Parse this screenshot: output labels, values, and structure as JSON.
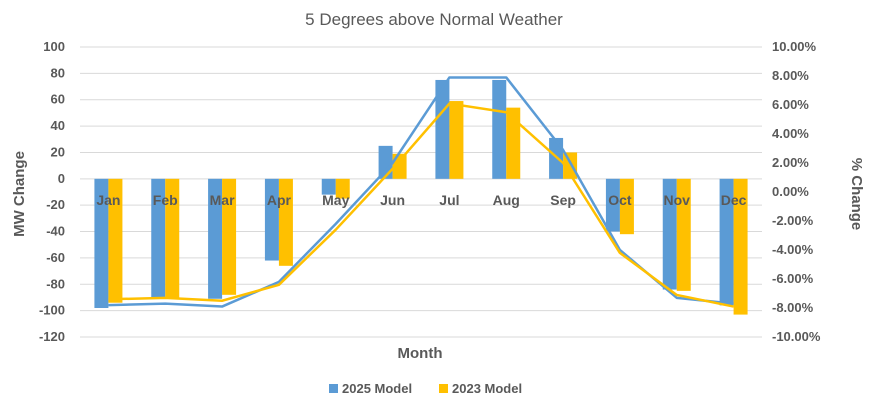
{
  "chart_data": {
    "type": "bar",
    "title": "5 Degrees above Normal Weather",
    "xlabel": "Month",
    "ylabel": "MW Change",
    "y2label": "% Change",
    "categories": [
      "Jan",
      "Feb",
      "Mar",
      "Apr",
      "May",
      "Jun",
      "Jul",
      "Aug",
      "Sep",
      "Oct",
      "Nov",
      "Dec"
    ],
    "ylim": [
      -120,
      100
    ],
    "y2lim": [
      -10,
      10
    ],
    "yticks": [
      "100",
      "80",
      "60",
      "40",
      "20",
      "0",
      "-20",
      "-40",
      "-60",
      "-80",
      "-100",
      "-120"
    ],
    "y2ticks": [
      "10.00%",
      "8.00%",
      "6.00%",
      "4.00%",
      "2.00%",
      "0.00%",
      "-2.00%",
      "-4.00%",
      "-6.00%",
      "-8.00%",
      "-10.00%"
    ],
    "grid": true,
    "legend_position": "bottom",
    "series": [
      {
        "name": "2025 Model",
        "kind": "bar",
        "axis": "left",
        "color": "#5B9BD5",
        "values": [
          -98,
          -91,
          -91,
          -62,
          -12,
          25,
          75,
          75,
          31,
          -40,
          -84,
          -96
        ]
      },
      {
        "name": "2023 Model",
        "kind": "bar",
        "axis": "left",
        "color": "#FFC000",
        "values": [
          -94,
          -91,
          -88,
          -66,
          -15,
          19,
          59,
          54,
          20,
          -42,
          -85,
          -103
        ]
      },
      {
        "name": "2025 Model",
        "kind": "line",
        "axis": "right",
        "color": "#5B9BD5",
        "values": [
          -7.8,
          -7.7,
          -7.9,
          -6.2,
          -2.2,
          2.0,
          7.9,
          7.9,
          2.9,
          -4.0,
          -7.3,
          -7.7
        ]
      },
      {
        "name": "2023 Model",
        "kind": "line",
        "axis": "right",
        "color": "#FFC000",
        "values": [
          -7.4,
          -7.3,
          -7.5,
          -6.4,
          -2.6,
          1.6,
          6.1,
          5.5,
          2.0,
          -4.2,
          -7.1,
          -7.9
        ]
      }
    ],
    "legend": [
      {
        "label": "2025 Model",
        "color": "#5B9BD5"
      },
      {
        "label": "2023 Model",
        "color": "#FFC000"
      }
    ]
  }
}
